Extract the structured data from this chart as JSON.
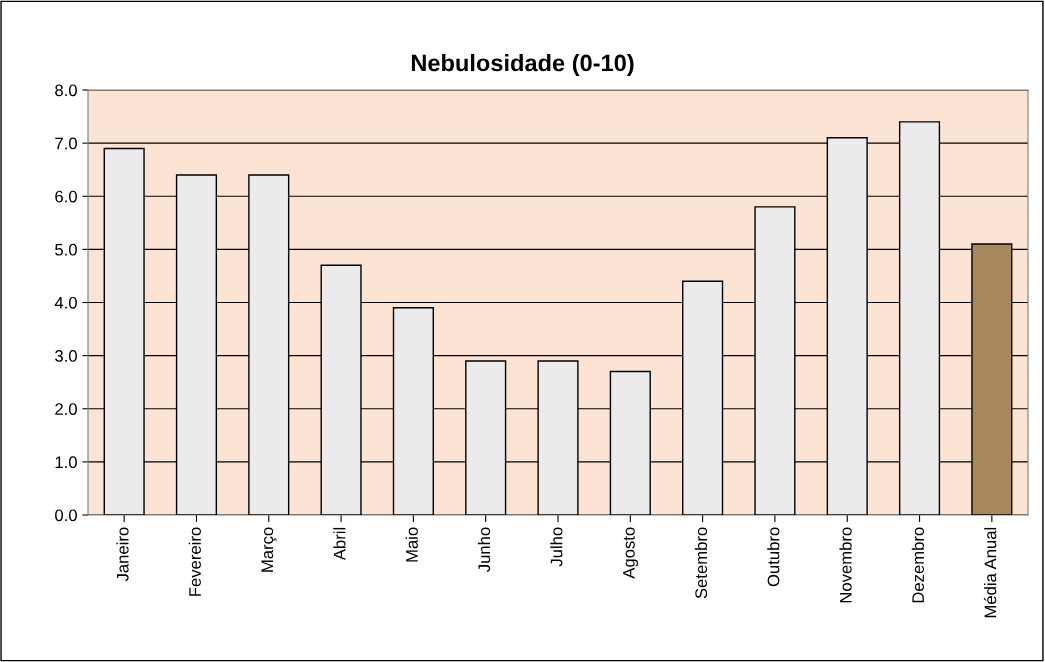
{
  "chart_data": {
    "type": "bar",
    "title": "Nebulosidade (0-10)",
    "categories": [
      "Janeiro",
      "Fevereiro",
      "Março",
      "Abril",
      "Maio",
      "Junho",
      "Julho",
      "Agosto",
      "Setembro",
      "Outubro",
      "Novembro",
      "Dezembro",
      "Média Anual"
    ],
    "values": [
      6.9,
      6.4,
      6.4,
      4.7,
      3.9,
      2.9,
      2.9,
      2.7,
      4.4,
      5.8,
      7.1,
      7.4,
      5.1
    ],
    "colors": [
      "#ebebeb",
      "#ebebeb",
      "#ebebeb",
      "#ebebeb",
      "#ebebeb",
      "#ebebeb",
      "#ebebeb",
      "#ebebeb",
      "#ebebeb",
      "#ebebeb",
      "#ebebeb",
      "#ebebeb",
      "#a8875c"
    ],
    "ylim": [
      0,
      8
    ],
    "yticks": [
      {
        "value": 0,
        "label": "0.0"
      },
      {
        "value": 1,
        "label": "1.0"
      },
      {
        "value": 2,
        "label": "2.0"
      },
      {
        "value": 3,
        "label": "3.0"
      },
      {
        "value": 4,
        "label": "4.0"
      },
      {
        "value": 5,
        "label": "5.0"
      },
      {
        "value": 6,
        "label": "6.0"
      },
      {
        "value": 7,
        "label": "7.0"
      },
      {
        "value": 8,
        "label": "8.0"
      }
    ],
    "grid": "y"
  }
}
